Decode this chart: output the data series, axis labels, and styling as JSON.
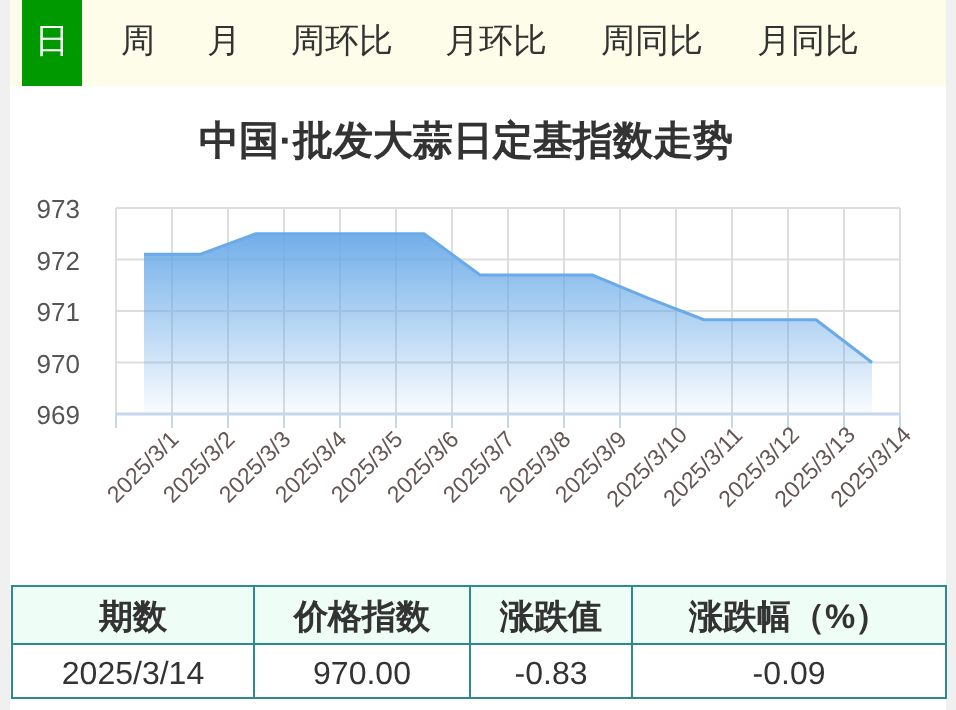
{
  "chart_data": [
    {
      "type": "other",
      "categories": [
        "日",
        "周",
        "月",
        "周环比",
        "月环比",
        "周同比",
        "月同比"
      ],
      "colors": [
        "#009900",
        null,
        null,
        null,
        null,
        null,
        null
      ]
    },
    {
      "type": "area",
      "title": "中国·批发大蒜日定基指数走势",
      "categories": [
        "2025/3/1",
        "2025/3/2",
        "2025/3/3",
        "2025/3/4",
        "2025/3/5",
        "2025/3/6",
        "2025/3/7",
        "2025/3/8",
        "2025/3/9",
        "2025/3/10",
        "2025/3/11",
        "2025/3/12",
        "2025/3/13",
        "2025/3/14"
      ],
      "series": [
        {
          "color": "#6aaae8",
          "values": [
            972.1,
            972.1,
            972.5,
            972.5,
            972.5,
            972.5,
            971.7,
            971.7,
            971.7,
            971.25,
            970.83,
            970.83,
            970.83,
            970.0
          ]
        }
      ],
      "ylim": [
        969,
        973
      ],
      "yticks": [
        969,
        970,
        971,
        972,
        973
      ],
      "grid": true
    },
    {
      "type": "other",
      "categories": [
        "期数",
        "价格指数",
        "涨跌值",
        "涨跌幅（%）"
      ],
      "annotations": [
        "2025/3/14",
        "970.00",
        "-0.83",
        "-0.09"
      ]
    }
  ]
}
